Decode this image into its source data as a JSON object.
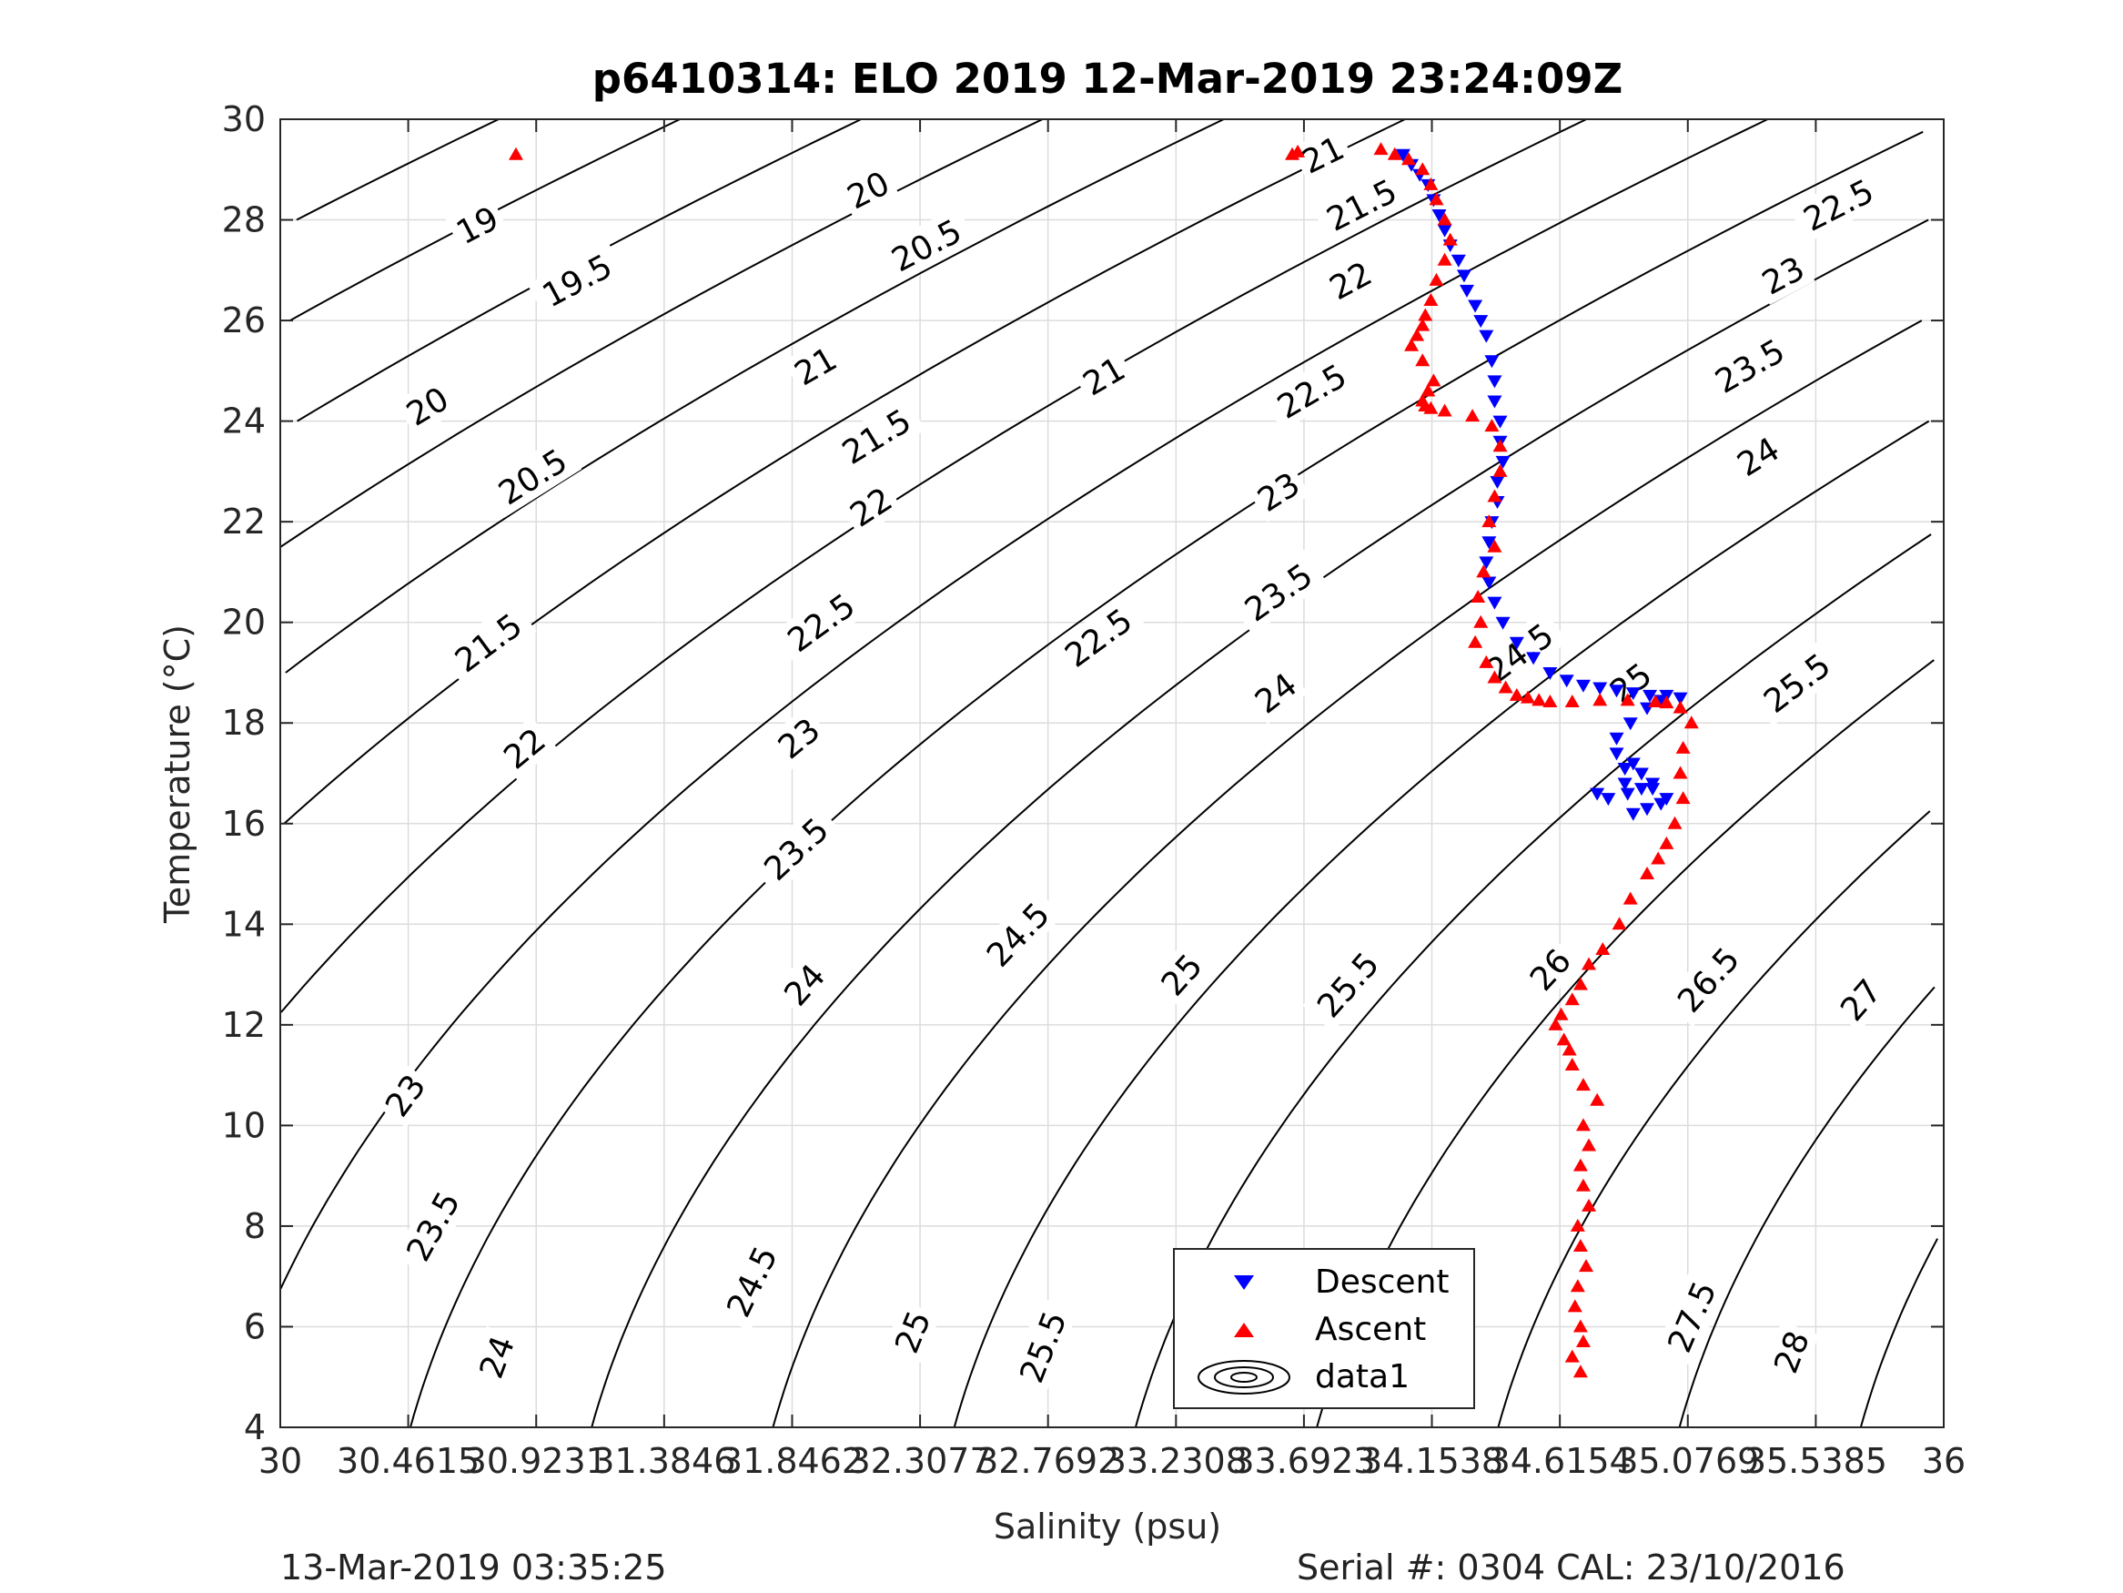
{
  "chart_data": {
    "type": "scatter",
    "title": "p6410314: ELO 2019 12-Mar-2019 23:24:09Z",
    "xlabel": "Salinity (psu)",
    "ylabel": "Temperature (°C)",
    "xlim": [
      30,
      36
    ],
    "ylim": [
      4,
      30
    ],
    "grid": true,
    "x_ticks": [
      30,
      30.4615,
      30.9231,
      31.3846,
      31.8462,
      32.3077,
      32.7692,
      33.2308,
      33.6923,
      34.1538,
      34.6154,
      35.0769,
      35.5385,
      36
    ],
    "x_tick_labels": [
      "30",
      "30.4615",
      "30.9231",
      "31.3846",
      "31.8462",
      "32.3077",
      "32.7692",
      "33.2308",
      "33.6923",
      "34.1538",
      "34.6154",
      "35.0769",
      "35.5385",
      "36"
    ],
    "y_ticks": [
      4,
      6,
      8,
      10,
      12,
      14,
      16,
      18,
      20,
      22,
      24,
      26,
      28,
      30
    ],
    "y_tick_labels": [
      "4",
      "6",
      "8",
      "10",
      "12",
      "14",
      "16",
      "18",
      "20",
      "22",
      "24",
      "26",
      "28",
      "30"
    ],
    "legend_position": "bottom-center",
    "legend": [
      "Descent",
      "Ascent",
      "data1"
    ],
    "series": [
      {
        "name": "Descent",
        "marker": "triangle-down",
        "color": "#0000ff",
        "x": [
          34.05,
          34.08,
          34.11,
          34.14,
          34.16,
          34.18,
          34.2,
          34.22,
          34.25,
          34.27,
          34.28,
          34.31,
          34.33,
          34.35,
          34.37,
          34.38,
          34.38,
          34.4,
          34.4,
          34.41,
          34.39,
          34.39,
          34.37,
          34.36,
          34.35,
          34.36,
          34.38,
          34.41,
          34.46,
          34.52,
          34.58,
          34.64,
          34.7,
          34.76,
          34.82,
          34.88,
          34.94,
          35.0,
          35.05,
          34.98,
          34.93,
          34.87,
          34.82,
          34.82,
          34.85,
          34.88,
          34.91,
          34.95,
          34.91,
          34.86,
          34.79,
          34.75,
          34.85,
          34.95,
          35.0,
          34.98,
          34.93,
          34.88
        ],
        "y": [
          29.3,
          29.1,
          28.9,
          28.7,
          28.4,
          28.1,
          27.8,
          27.5,
          27.2,
          26.9,
          26.6,
          26.3,
          26.0,
          25.7,
          25.2,
          24.8,
          24.4,
          24.0,
          23.6,
          23.2,
          22.8,
          22.4,
          22.0,
          21.6,
          21.2,
          20.8,
          20.4,
          20.0,
          19.6,
          19.3,
          19.0,
          18.85,
          18.75,
          18.7,
          18.65,
          18.6,
          18.55,
          18.55,
          18.5,
          18.45,
          18.3,
          18.0,
          17.7,
          17.4,
          17.1,
          17.2,
          17.0,
          16.8,
          16.7,
          16.6,
          16.5,
          16.6,
          16.8,
          16.7,
          16.5,
          16.4,
          16.3,
          16.2
        ]
      },
      {
        "name": "Ascent",
        "marker": "triangle-up",
        "color": "#ff0000",
        "x": [
          30.85,
          33.65,
          33.67,
          33.97,
          34.02,
          34.07,
          34.12,
          34.15,
          34.17,
          34.2,
          34.22,
          34.2,
          34.17,
          34.15,
          34.13,
          34.12,
          34.1,
          34.08,
          34.12,
          34.16,
          34.14,
          34.12,
          34.13,
          34.15,
          34.2,
          34.3,
          34.37,
          34.4,
          34.4,
          34.38,
          34.36,
          34.38,
          34.34,
          34.32,
          34.33,
          34.31,
          34.35,
          34.38,
          34.42,
          34.46,
          34.5,
          34.54,
          34.58,
          34.66,
          34.76,
          34.86,
          34.96,
          35.0,
          35.05,
          35.09,
          35.06,
          35.05,
          35.06,
          35.03,
          35.0,
          34.97,
          34.93,
          34.87,
          34.83,
          34.77,
          34.72,
          34.69,
          34.66,
          34.62,
          34.6,
          34.63,
          34.65,
          34.66,
          34.7,
          34.75,
          34.7,
          34.72,
          34.69,
          34.7,
          34.72,
          34.68,
          34.69,
          34.71,
          34.68,
          34.67,
          34.69,
          34.7,
          34.66,
          34.69
        ],
        "y": [
          29.3,
          29.3,
          29.35,
          29.4,
          29.3,
          29.2,
          29.0,
          28.7,
          28.4,
          28.0,
          27.6,
          27.2,
          26.8,
          26.4,
          26.1,
          25.9,
          25.7,
          25.5,
          25.2,
          24.8,
          24.6,
          24.4,
          24.3,
          24.25,
          24.2,
          24.1,
          23.9,
          23.5,
          23.0,
          22.5,
          22.0,
          21.5,
          21.0,
          20.5,
          20.0,
          19.6,
          19.2,
          18.9,
          18.7,
          18.55,
          18.5,
          18.45,
          18.42,
          18.42,
          18.45,
          18.45,
          18.42,
          18.4,
          18.3,
          18.0,
          17.5,
          17.0,
          16.5,
          16.0,
          15.6,
          15.3,
          15.0,
          14.5,
          14.0,
          13.5,
          13.2,
          12.8,
          12.5,
          12.2,
          12.0,
          11.7,
          11.5,
          11.2,
          10.8,
          10.5,
          10.0,
          9.6,
          9.2,
          8.8,
          8.4,
          8.0,
          7.6,
          7.2,
          6.8,
          6.4,
          6.0,
          5.7,
          5.4,
          5.1
        ]
      }
    ],
    "sigma_contours": {
      "levels": [
        19,
        19.5,
        20,
        20.5,
        21,
        21.5,
        22,
        22.5,
        23,
        23.5,
        24,
        24.5,
        25,
        25.5,
        26,
        26.5,
        27,
        27.5,
        28
      ],
      "labels": [
        {
          "text": "19",
          "s": 30.71,
          "t": 27.9
        },
        {
          "text": "19.5",
          "s": 31.07,
          "t": 26.8
        },
        {
          "text": "20",
          "s": 30.53,
          "t": 24.3
        },
        {
          "text": "20.5",
          "s": 30.91,
          "t": 22.9
        },
        {
          "text": "21",
          "s": 32.97,
          "t": 24.9
        },
        {
          "text": "21.5",
          "s": 30.75,
          "t": 19.6
        },
        {
          "text": "22",
          "s": 30.88,
          "t": 17.5
        },
        {
          "text": "22.5",
          "s": 32.95,
          "t": 19.7
        },
        {
          "text": "23",
          "s": 30.45,
          "t": 10.6
        },
        {
          "text": "23.5",
          "s": 30.55,
          "t": 8.0
        },
        {
          "text": "24",
          "s": 30.78,
          "t": 5.4
        },
        {
          "text": "24.5",
          "s": 31.7,
          "t": 6.9
        },
        {
          "text": "25",
          "s": 32.28,
          "t": 5.9
        },
        {
          "text": "25.5",
          "s": 32.75,
          "t": 5.6
        },
        {
          "text": "26",
          "s": 33.38,
          "t": 6.5
        },
        {
          "text": "26.5",
          "s": 33.73,
          "t": 5.5
        },
        {
          "text": "27",
          "s": 34.2,
          "t": 5.1
        },
        {
          "text": "27.5",
          "s": 35.09,
          "t": 6.2
        },
        {
          "text": "28",
          "s": 35.45,
          "t": 5.5
        }
      ],
      "extra_labels": [
        {
          "text": "20",
          "s": 32.12,
          "t": 28.6
        },
        {
          "text": "20.5",
          "s": 32.33,
          "t": 27.5
        },
        {
          "text": "21",
          "s": 31.93,
          "t": 25.1
        },
        {
          "text": "21.5",
          "s": 32.15,
          "t": 23.7
        },
        {
          "text": "22",
          "s": 32.13,
          "t": 22.3
        },
        {
          "text": "22.5",
          "s": 31.95,
          "t": 20.0
        },
        {
          "text": "23",
          "s": 31.87,
          "t": 17.7
        },
        {
          "text": "23.5",
          "s": 31.86,
          "t": 15.5
        },
        {
          "text": "24",
          "s": 31.89,
          "t": 12.8
        },
        {
          "text": "24.5",
          "s": 32.66,
          "t": 13.8
        },
        {
          "text": "25",
          "s": 33.25,
          "t": 13.0
        },
        {
          "text": "25.5",
          "s": 33.85,
          "t": 12.8
        },
        {
          "text": "26",
          "s": 34.58,
          "t": 13.1
        },
        {
          "text": "26.5",
          "s": 35.15,
          "t": 12.9
        },
        {
          "text": "27",
          "s": 35.7,
          "t": 12.5
        },
        {
          "text": "21",
          "s": 33.76,
          "t": 29.3
        },
        {
          "text": "21.5",
          "s": 33.9,
          "t": 28.3
        },
        {
          "text": "22",
          "s": 33.86,
          "t": 26.8
        },
        {
          "text": "22.5",
          "s": 33.72,
          "t": 24.6
        },
        {
          "text": "23",
          "s": 33.6,
          "t": 22.6
        },
        {
          "text": "23.5",
          "s": 33.6,
          "t": 20.6
        },
        {
          "text": "24",
          "s": 33.59,
          "t": 18.6
        },
        {
          "text": "24.5",
          "s": 34.47,
          "t": 19.4
        },
        {
          "text": "25",
          "s": 34.87,
          "t": 18.8
        },
        {
          "text": "22.5",
          "s": 35.62,
          "t": 28.3
        },
        {
          "text": "23",
          "s": 35.42,
          "t": 26.9
        },
        {
          "text": "23.5",
          "s": 35.3,
          "t": 25.1
        },
        {
          "text": "24",
          "s": 35.33,
          "t": 23.3
        },
        {
          "text": "25.5",
          "s": 35.47,
          "t": 18.8
        }
      ]
    }
  },
  "footer": {
    "left": "13-Mar-2019 03:35:25",
    "right": "Serial #: 0304  CAL: 23/10/2016"
  }
}
